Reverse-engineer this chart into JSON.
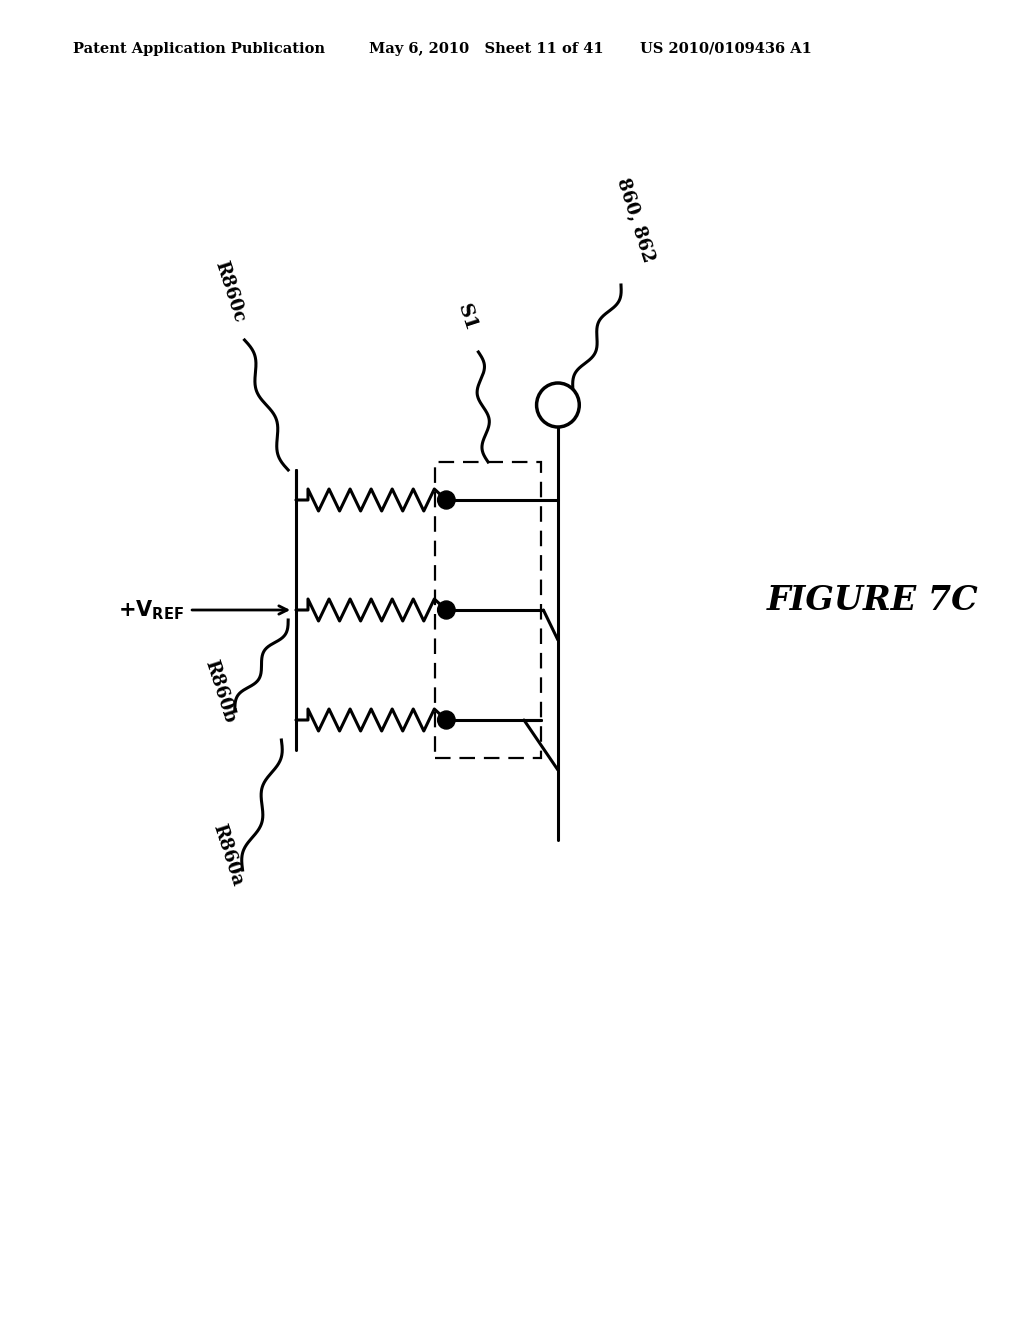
{
  "header_left": "Patent Application Publication",
  "header_center": "May 6, 2010   Sheet 11 of 41",
  "header_right": "US 2010/0109436 A1",
  "figure_label": "FIGURE 7C",
  "bg_color": "#ffffff",
  "line_color": "#000000",
  "label_860_862": "860, 862",
  "label_S1": "S1",
  "label_R860c": "R860c",
  "label_R860b": "R860b",
  "label_R860a": "R860a"
}
